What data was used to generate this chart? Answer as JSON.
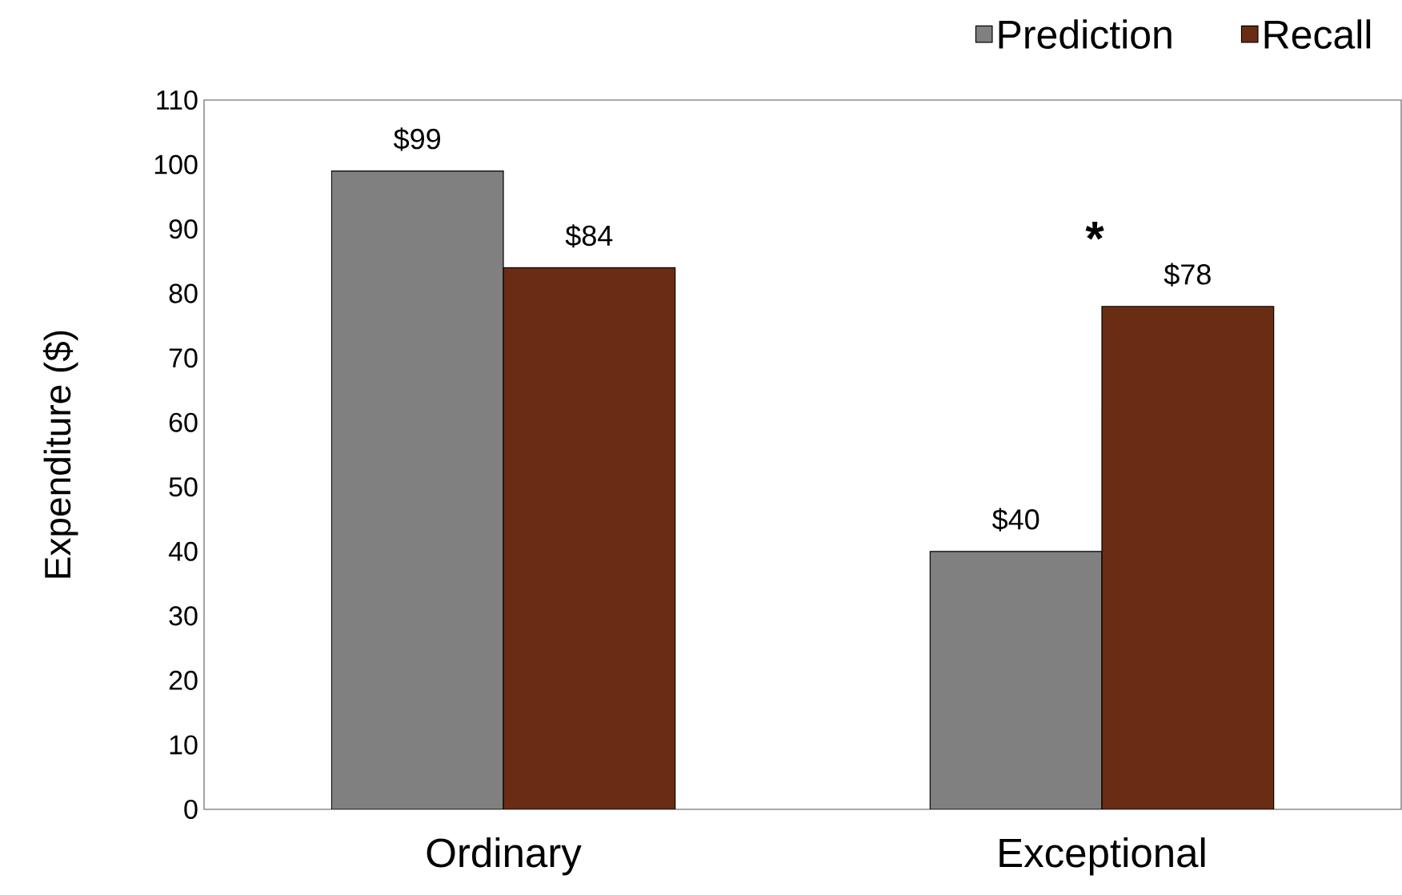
{
  "chart_data": {
    "type": "bar",
    "ylabel": "Expenditure ($)",
    "categories": [
      "Ordinary",
      "Exceptional"
    ],
    "series": [
      {
        "name": "Prediction",
        "color": "#808080",
        "values": [
          99,
          40
        ],
        "value_labels": [
          "$99",
          "$40"
        ]
      },
      {
        "name": "Recall",
        "color": "#6b2c14",
        "values": [
          84,
          78
        ],
        "value_labels": [
          "$84",
          "$78"
        ]
      }
    ],
    "ylim": [
      0,
      110
    ],
    "yticks": [
      0,
      10,
      20,
      30,
      40,
      50,
      60,
      70,
      80,
      90,
      100,
      110
    ],
    "legend": "top right",
    "grid": false,
    "annotations": [
      "*"
    ]
  }
}
